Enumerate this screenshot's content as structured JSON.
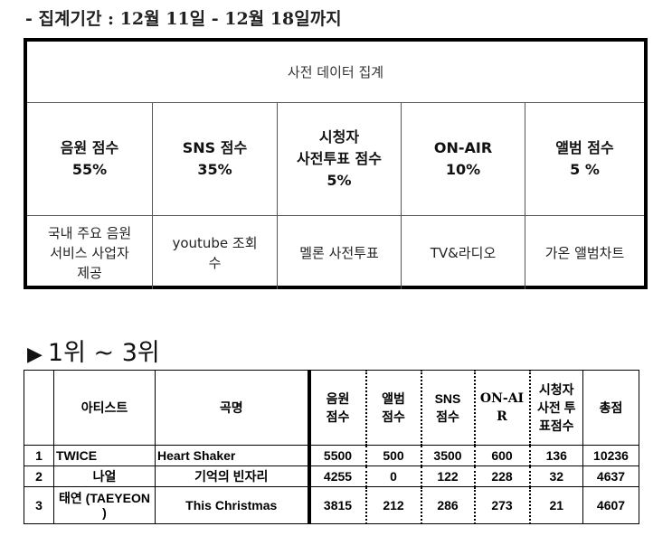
{
  "period_text": "- 집계기간 : 12월 11일 - 12월 18일까지",
  "criteria": {
    "title": "사전 데이터 집계",
    "columns": [
      {
        "header": "음원 점수\n55%",
        "source": "국내 주요 음원\n서비스 사업자\n제공"
      },
      {
        "header": "SNS 점수\n35%",
        "source": "youtube 조회\n수"
      },
      {
        "header": "시청자\n사전투표 점수\n5%",
        "source": "멜론 사전투표"
      },
      {
        "header": "ON-AIR\n10%",
        "source": "TV&라디오"
      },
      {
        "header": "앨범 점수\n5 %",
        "source": "가온 앨범차트"
      }
    ]
  },
  "section_title": "1위 ~ 3위",
  "section_icon": "triangle-right-icon",
  "ranking": {
    "headers": {
      "rank": "",
      "artist": "아티스트",
      "song": "곡명",
      "audio": "음원\n점수",
      "album": "앨범\n점수",
      "sns": "SNS\n점수",
      "onair": "ON-AI\nR",
      "vote": "시청자\n사전 투\n표점수",
      "total": "총점"
    },
    "rows": [
      {
        "rank": "1",
        "artist": "TWICE",
        "song": "Heart Shaker",
        "audio": "5500",
        "album": "500",
        "sns": "3500",
        "onair": "600",
        "vote": "136",
        "total": "10236"
      },
      {
        "rank": "2",
        "artist": "나얼",
        "song": "기억의 빈자리",
        "audio": "4255",
        "album": "0",
        "sns": "122",
        "onair": "228",
        "vote": "32",
        "total": "4637"
      },
      {
        "rank": "3",
        "artist": "태연 (TAEYEON\n)",
        "song": "This Christmas",
        "audio": "3815",
        "album": "212",
        "sns": "286",
        "onair": "273",
        "vote": "21",
        "total": "4607"
      }
    ]
  }
}
